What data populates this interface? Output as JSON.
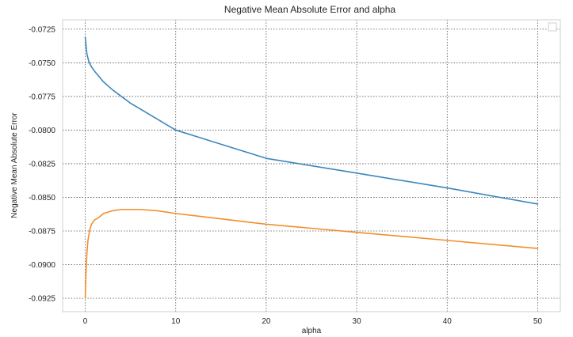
{
  "chart_data": {
    "type": "line",
    "title": "Negative Mean Absolute Error and alpha",
    "xlabel": "alpha",
    "ylabel": "Negative Mean Absolute Error",
    "xlim": [
      -2.5,
      52.5
    ],
    "ylim": [
      -0.0935,
      -0.0718
    ],
    "xticks": [
      0,
      10,
      20,
      30,
      40,
      50
    ],
    "yticks": [
      -0.0725,
      -0.075,
      -0.0775,
      -0.08,
      -0.0825,
      -0.085,
      -0.0875,
      -0.09,
      -0.0925
    ],
    "ytick_labels": [
      "-0.0725",
      "-0.0750",
      "-0.0775",
      "-0.0800",
      "-0.0825",
      "-0.0850",
      "-0.0875",
      "-0.0900",
      "-0.0925"
    ],
    "grid": true,
    "legend": "top-right (empty)",
    "series": [
      {
        "color": "#3a87bd",
        "x": [
          0.0001,
          0.1,
          0.2,
          0.4,
          0.6,
          0.8,
          1,
          2,
          3,
          4,
          5,
          6,
          7,
          8,
          9,
          10,
          20,
          30,
          40,
          50
        ],
        "y": [
          -0.0731,
          -0.0738,
          -0.0744,
          -0.0749,
          -0.0752,
          -0.0754,
          -0.0756,
          -0.0764,
          -0.077,
          -0.0775,
          -0.078,
          -0.0784,
          -0.0788,
          -0.0792,
          -0.0796,
          -0.08,
          -0.0821,
          -0.0832,
          -0.0843,
          -0.0855
        ]
      },
      {
        "color": "#f28e2b",
        "x": [
          0.0001,
          0.1,
          0.2,
          0.3,
          0.5,
          0.7,
          1,
          1.5,
          2,
          3,
          4,
          5,
          6,
          8,
          10,
          20,
          30,
          40,
          50
        ],
        "y": [
          -0.0925,
          -0.0903,
          -0.089,
          -0.0882,
          -0.0874,
          -0.087,
          -0.0867,
          -0.0865,
          -0.0862,
          -0.086,
          -0.0859,
          -0.0859,
          -0.0859,
          -0.086,
          -0.0862,
          -0.087,
          -0.0876,
          -0.0882,
          -0.0888
        ]
      }
    ]
  }
}
